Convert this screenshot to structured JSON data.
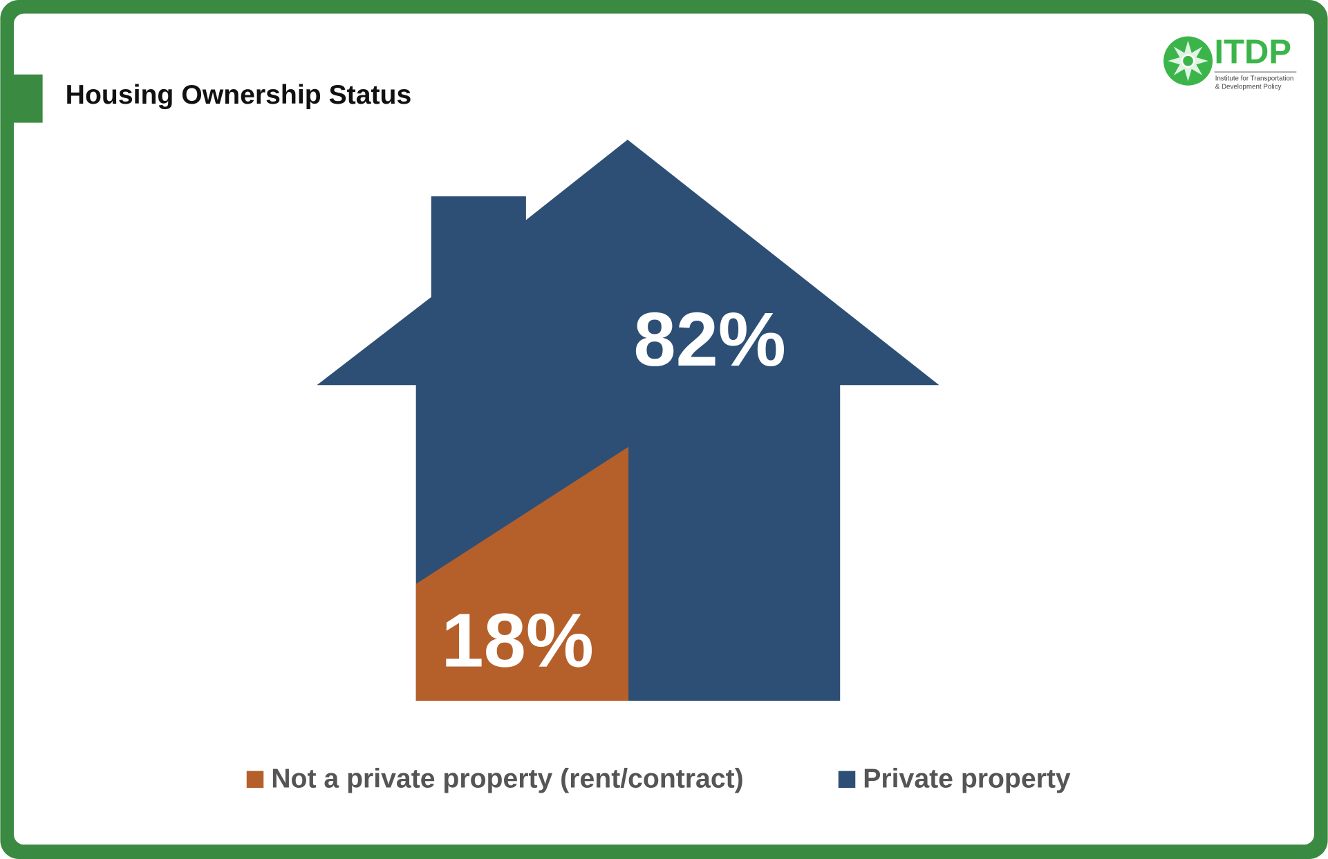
{
  "chart_data": {
    "type": "house",
    "title": "Housing Ownership Status",
    "categories": [
      "Not a private property (rent/contract)",
      "Private property"
    ],
    "values": [
      18,
      82
    ],
    "value_labels": [
      "18%",
      "82%"
    ],
    "colors": [
      "#b5602a",
      "#2d4f76"
    ]
  },
  "logo": {
    "name": "ITDP",
    "tagline": [
      "Institute for Transportation",
      "& Development Policy"
    ]
  }
}
